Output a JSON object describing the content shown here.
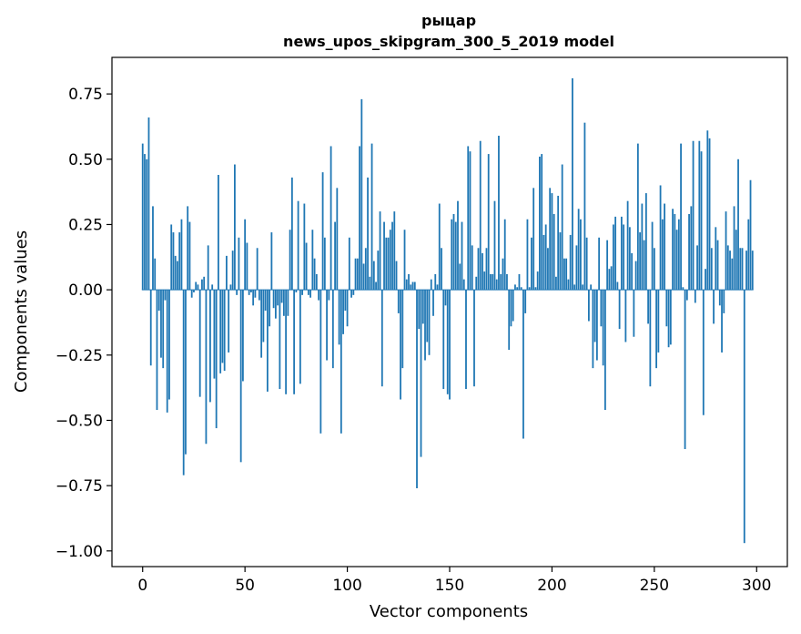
{
  "chart_data": {
    "type": "bar",
    "title": "рыцар",
    "subtitle": "news_upos_skipgram_300_5_2019 model",
    "xlabel": "Vector components",
    "ylabel": "Components values",
    "xlim": [
      -15,
      315
    ],
    "ylim": [
      -1.06,
      0.89
    ],
    "xticks": [
      0,
      50,
      100,
      150,
      200,
      250,
      300
    ],
    "yticks": [
      -1.0,
      -0.75,
      -0.5,
      -0.25,
      0.0,
      0.25,
      0.5,
      0.75
    ],
    "ytick_labels": [
      "−1.00",
      "−0.75",
      "−0.50",
      "−0.25",
      "0.00",
      "0.25",
      "0.50",
      "0.75"
    ],
    "grid": false,
    "color": "#1f77b4",
    "values": [
      0.56,
      0.52,
      0.5,
      0.66,
      -0.29,
      0.32,
      0.12,
      -0.46,
      -0.08,
      -0.26,
      -0.3,
      -0.04,
      -0.47,
      -0.42,
      0.25,
      0.22,
      0.13,
      0.11,
      0.22,
      0.27,
      -0.71,
      -0.63,
      0.32,
      0.26,
      -0.03,
      -0.01,
      0.03,
      0.02,
      -0.41,
      0.04,
      0.05,
      -0.59,
      0.17,
      -0.43,
      0.02,
      -0.34,
      -0.53,
      0.44,
      -0.32,
      -0.28,
      -0.31,
      0.13,
      -0.24,
      0.02,
      0.15,
      0.48,
      -0.02,
      0.2,
      -0.66,
      -0.35,
      0.27,
      0.18,
      -0.02,
      -0.01,
      -0.06,
      -0.03,
      0.16,
      -0.04,
      -0.26,
      -0.2,
      -0.08,
      -0.39,
      -0.14,
      0.22,
      -0.07,
      -0.11,
      -0.06,
      -0.38,
      -0.05,
      -0.1,
      -0.4,
      -0.1,
      0.23,
      0.43,
      -0.4,
      -0.01,
      0.34,
      -0.36,
      -0.02,
      0.33,
      0.18,
      -0.02,
      -0.03,
      0.23,
      0.12,
      0.06,
      -0.04,
      -0.55,
      0.45,
      0.2,
      -0.27,
      -0.04,
      0.55,
      -0.3,
      0.26,
      0.39,
      -0.21,
      -0.55,
      -0.17,
      -0.08,
      -0.14,
      0.2,
      -0.03,
      -0.02,
      0.12,
      0.12,
      0.55,
      0.73,
      0.1,
      0.16,
      0.43,
      0.05,
      0.56,
      0.11,
      0.03,
      0.15,
      0.3,
      -0.37,
      0.26,
      0.2,
      0.2,
      0.23,
      0.26,
      0.3,
      0.11,
      -0.09,
      -0.42,
      -0.3,
      0.23,
      0.04,
      0.06,
      0.02,
      0.03,
      0.03,
      -0.76,
      -0.15,
      -0.64,
      -0.13,
      -0.27,
      -0.2,
      -0.25,
      0.04,
      -0.1,
      0.06,
      0.02,
      0.33,
      0.16,
      -0.38,
      -0.06,
      -0.4,
      -0.42,
      0.27,
      0.29,
      0.26,
      0.34,
      0.1,
      0.26,
      0.04,
      -0.38,
      0.55,
      0.53,
      0.17,
      -0.37,
      0.05,
      0.16,
      0.57,
      0.14,
      0.07,
      0.16,
      0.52,
      0.06,
      0.06,
      0.34,
      0.04,
      0.59,
      0.06,
      0.12,
      0.27,
      0.06,
      -0.23,
      -0.14,
      -0.12,
      0.02,
      0.01,
      0.06,
      0.01,
      -0.57,
      -0.09,
      0.27,
      0.01,
      0.2,
      0.39,
      0.01,
      0.07,
      0.51,
      0.52,
      0.21,
      0.25,
      0.16,
      0.39,
      0.37,
      0.29,
      0.05,
      0.36,
      0.22,
      0.48,
      0.12,
      0.12,
      0.04,
      0.21,
      0.81,
      0.02,
      0.17,
      0.31,
      0.27,
      0.02,
      0.64,
      0.2,
      -0.12,
      0.02,
      -0.3,
      -0.2,
      -0.27,
      0.2,
      -0.14,
      -0.29,
      -0.46,
      0.19,
      0.08,
      0.09,
      0.25,
      0.28,
      0.03,
      -0.15,
      0.28,
      0.25,
      -0.2,
      0.34,
      0.24,
      0.14,
      -0.18,
      0.11,
      0.56,
      0.22,
      0.33,
      0.19,
      0.37,
      -0.13,
      -0.37,
      0.26,
      0.16,
      -0.3,
      -0.24,
      0.4,
      0.27,
      0.33,
      -0.14,
      -0.22,
      -0.21,
      0.31,
      0.29,
      0.23,
      0.27,
      0.56,
      0.01,
      -0.61,
      -0.04,
      0.29,
      0.32,
      0.57,
      -0.05,
      0.17,
      0.57,
      0.53,
      -0.48,
      0.08,
      0.61,
      0.58,
      0.16,
      -0.13,
      0.24,
      0.19,
      -0.06,
      -0.24,
      -0.09,
      0.3,
      0.17,
      0.15,
      0.12,
      0.32,
      0.23,
      0.5,
      0.16,
      0.16,
      -0.97,
      0.15,
      0.27,
      0.42,
      0.15
    ]
  }
}
